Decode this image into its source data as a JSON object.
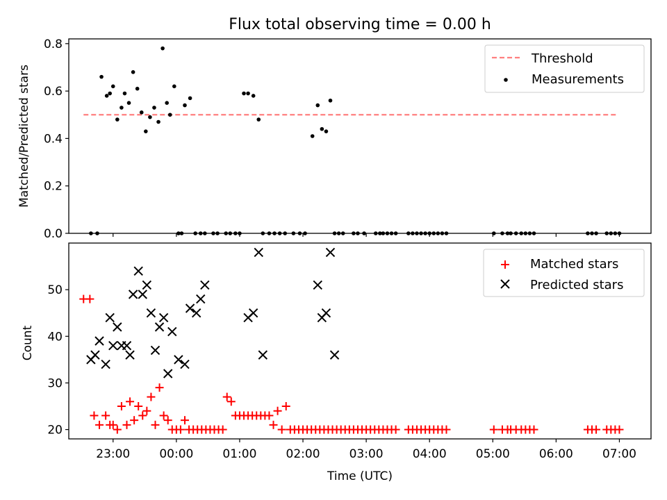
{
  "title": "Flux total observing time = 0.00 h",
  "xlabel": "Time (UTC)",
  "x_ticks": [
    "23:00",
    "00:00",
    "01:00",
    "02:00",
    "03:00",
    "04:00",
    "05:00",
    "06:00",
    "07:00"
  ],
  "chart_data": [
    {
      "type": "scatter",
      "ylabel": "Matched/Predicted stars",
      "ylim": [
        0,
        0.82
      ],
      "xlim": [
        "22:18",
        "07:30"
      ],
      "y_ticks": [
        "0.0",
        "0.2",
        "0.4",
        "0.6",
        "0.8"
      ],
      "legend_position": "top-right",
      "series": [
        {
          "name": "Threshold",
          "kind": "dashed-line",
          "color": "#ff7f7f",
          "x": [
            "22:32",
            "06:57"
          ],
          "y": [
            0.5,
            0.5
          ]
        },
        {
          "name": "Measurements",
          "kind": "points",
          "color": "#000000",
          "x": [
            "22:39",
            "22:45",
            "22:49",
            "22:54",
            "22:57",
            "23:00",
            "23:04",
            "23:08",
            "23:11",
            "23:15",
            "23:19",
            "23:23",
            "23:27",
            "23:31",
            "23:35",
            "23:39",
            "23:43",
            "23:47",
            "23:51",
            "23:54",
            "23:58",
            "00:02",
            "00:05",
            "00:08",
            "00:13",
            "00:18",
            "00:23",
            "00:27",
            "00:35",
            "00:39",
            "00:47",
            "00:51",
            "00:56",
            "01:00",
            "01:04",
            "01:08",
            "01:13",
            "01:18",
            "01:22",
            "01:28",
            "01:33",
            "01:38",
            "01:43",
            "01:51",
            "01:57",
            "02:02",
            "02:09",
            "02:14",
            "02:18",
            "02:22",
            "02:26",
            "02:30",
            "02:34",
            "02:38",
            "02:48",
            "02:52",
            "02:58",
            "03:09",
            "03:13",
            "03:16",
            "03:20",
            "03:24",
            "03:28",
            "03:40",
            "03:44",
            "03:48",
            "03:52",
            "03:56",
            "04:00",
            "04:04",
            "04:08",
            "04:12",
            "04:16",
            "05:01",
            "05:09",
            "05:14",
            "05:17",
            "05:22",
            "05:27",
            "05:31",
            "05:35",
            "05:39",
            "06:30",
            "06:34",
            "06:38",
            "06:48",
            "06:52",
            "06:56",
            "07:00"
          ],
          "y": [
            0.0,
            0.0,
            0.66,
            0.58,
            0.59,
            0.62,
            0.48,
            0.53,
            0.59,
            0.55,
            0.68,
            0.61,
            0.51,
            0.43,
            0.49,
            0.53,
            0.47,
            0.78,
            0.55,
            0.5,
            0.62,
            0.0,
            0.0,
            0.54,
            0.57,
            0.0,
            0.0,
            0.0,
            0.0,
            0.0,
            0.0,
            0.0,
            0.0,
            0.0,
            0.59,
            0.59,
            0.58,
            0.48,
            0.0,
            0.0,
            0.0,
            0.0,
            0.0,
            0.0,
            0.0,
            0.0,
            0.41,
            0.54,
            0.44,
            0.43,
            0.56,
            0.0,
            0.0,
            0.0,
            0.0,
            0.0,
            0.0,
            0.0,
            0.0,
            0.0,
            0.0,
            0.0,
            0.0,
            0.0,
            0.0,
            0.0,
            0.0,
            0.0,
            0.0,
            0.0,
            0.0,
            0.0,
            0.0,
            0.0,
            0.0,
            0.0,
            0.0,
            0.0,
            0.0,
            0.0,
            0.0,
            0.0,
            0.0,
            0.0,
            0.0,
            0.0,
            0.0,
            0.0,
            0.0
          ]
        }
      ]
    },
    {
      "type": "scatter",
      "ylabel": "Count",
      "ylim": [
        18,
        60
      ],
      "xlim": [
        "22:18",
        "07:30"
      ],
      "y_ticks": [
        "20",
        "30",
        "40",
        "50"
      ],
      "legend_position": "top-right",
      "series": [
        {
          "name": "Matched stars",
          "kind": "plus",
          "color": "#ff0000",
          "x": [
            "22:32",
            "22:38",
            "22:42",
            "22:47",
            "22:53",
            "22:57",
            "23:00",
            "23:04",
            "23:08",
            "23:13",
            "23:16",
            "23:20",
            "23:24",
            "23:28",
            "23:32",
            "23:36",
            "23:40",
            "23:44",
            "23:48",
            "23:52",
            "23:56",
            "00:00",
            "00:04",
            "00:08",
            "00:12",
            "00:16",
            "00:20",
            "00:24",
            "00:28",
            "00:32",
            "00:36",
            "00:40",
            "00:44",
            "00:48",
            "00:52",
            "00:56",
            "01:00",
            "01:04",
            "01:08",
            "01:12",
            "01:16",
            "01:20",
            "01:24",
            "01:28",
            "01:32",
            "01:36",
            "01:40",
            "01:44",
            "01:48",
            "01:52",
            "01:56",
            "02:00",
            "02:04",
            "02:08",
            "02:12",
            "02:16",
            "02:20",
            "02:24",
            "02:28",
            "02:32",
            "02:36",
            "02:40",
            "02:44",
            "02:48",
            "02:52",
            "02:56",
            "03:00",
            "03:04",
            "03:08",
            "03:12",
            "03:16",
            "03:20",
            "03:24",
            "03:28",
            "03:40",
            "03:44",
            "03:48",
            "03:52",
            "03:56",
            "04:00",
            "04:04",
            "04:08",
            "04:12",
            "04:16",
            "05:01",
            "05:09",
            "05:14",
            "05:17",
            "05:22",
            "05:27",
            "05:31",
            "05:35",
            "05:39",
            "06:30",
            "06:34",
            "06:38",
            "06:48",
            "06:52",
            "06:56",
            "07:00"
          ],
          "y": [
            48,
            48,
            23,
            21,
            23,
            21,
            21,
            20,
            25,
            21,
            26,
            22,
            25,
            23,
            24,
            27,
            21,
            29,
            23,
            22,
            20,
            20,
            20,
            22,
            20,
            20,
            20,
            20,
            20,
            20,
            20,
            20,
            20,
            27,
            26,
            23,
            23,
            23,
            23,
            23,
            23,
            23,
            23,
            23,
            21,
            24,
            20,
            25,
            20,
            20,
            20,
            20,
            20,
            20,
            20,
            20,
            20,
            20,
            20,
            20,
            20,
            20,
            20,
            20,
            20,
            20,
            20,
            20,
            20,
            20,
            20,
            20,
            20,
            20,
            20,
            20,
            20,
            20,
            20,
            20,
            20,
            20,
            20,
            20,
            20,
            20,
            20,
            20,
            20,
            20,
            20,
            20,
            20,
            20,
            20,
            20,
            20,
            20,
            20,
            20
          ]
        },
        {
          "name": "Predicted stars",
          "kind": "x",
          "color": "#000000",
          "x": [
            "22:39",
            "22:43",
            "22:47",
            "22:53",
            "22:57",
            "23:00",
            "23:04",
            "23:08",
            "23:13",
            "23:16",
            "23:19",
            "23:24",
            "23:28",
            "23:32",
            "23:36",
            "23:40",
            "23:44",
            "23:48",
            "23:52",
            "23:56",
            "00:02",
            "00:08",
            "00:13",
            "00:19",
            "00:23",
            "00:27",
            "01:08",
            "01:13",
            "01:18",
            "01:22",
            "02:14",
            "02:18",
            "02:22",
            "02:26",
            "02:30"
          ],
          "y": [
            35,
            36,
            39,
            34,
            44,
            38,
            42,
            38,
            38,
            36,
            49,
            54,
            49,
            51,
            45,
            37,
            42,
            44,
            32,
            41,
            35,
            34,
            46,
            45,
            48,
            51,
            44,
            45,
            58,
            36,
            51,
            44,
            45,
            58,
            36
          ]
        }
      ]
    }
  ]
}
